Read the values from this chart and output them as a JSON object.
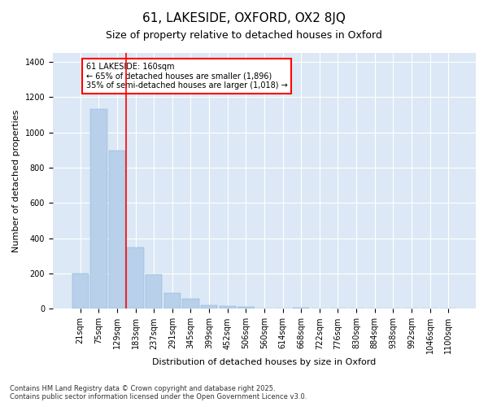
{
  "title1": "61, LAKESIDE, OXFORD, OX2 8JQ",
  "title2": "Size of property relative to detached houses in Oxford",
  "xlabel": "Distribution of detached houses by size in Oxford",
  "ylabel": "Number of detached properties",
  "categories": [
    "21sqm",
    "75sqm",
    "129sqm",
    "183sqm",
    "237sqm",
    "291sqm",
    "345sqm",
    "399sqm",
    "452sqm",
    "506sqm",
    "560sqm",
    "614sqm",
    "668sqm",
    "722sqm",
    "776sqm",
    "830sqm",
    "884sqm",
    "938sqm",
    "992sqm",
    "1046sqm",
    "1100sqm"
  ],
  "values": [
    200,
    1130,
    895,
    350,
    195,
    90,
    57,
    22,
    18,
    12,
    0,
    0,
    8,
    0,
    0,
    0,
    0,
    0,
    0,
    0,
    0
  ],
  "bar_color": "#b8d0ea",
  "bar_edge_color": "#7badd4",
  "red_line_x": 2.5,
  "annotation_line1": "61 LAKESIDE: 160sqm",
  "annotation_line2": "← 65% of detached houses are smaller (1,896)",
  "annotation_line3": "35% of semi-detached houses are larger (1,018) →",
  "footer1": "Contains HM Land Registry data © Crown copyright and database right 2025.",
  "footer2": "Contains public sector information licensed under the Open Government Licence v3.0.",
  "fig_bg_color": "#ffffff",
  "plot_bg_color": "#dce8f5",
  "grid_color": "#ffffff",
  "ylim": [
    0,
    1450
  ],
  "yticks": [
    0,
    200,
    400,
    600,
    800,
    1000,
    1200,
    1400
  ],
  "title1_fontsize": 11,
  "title2_fontsize": 9,
  "xlabel_fontsize": 8,
  "ylabel_fontsize": 8,
  "tick_fontsize": 7,
  "annot_fontsize": 7,
  "footer_fontsize": 6
}
